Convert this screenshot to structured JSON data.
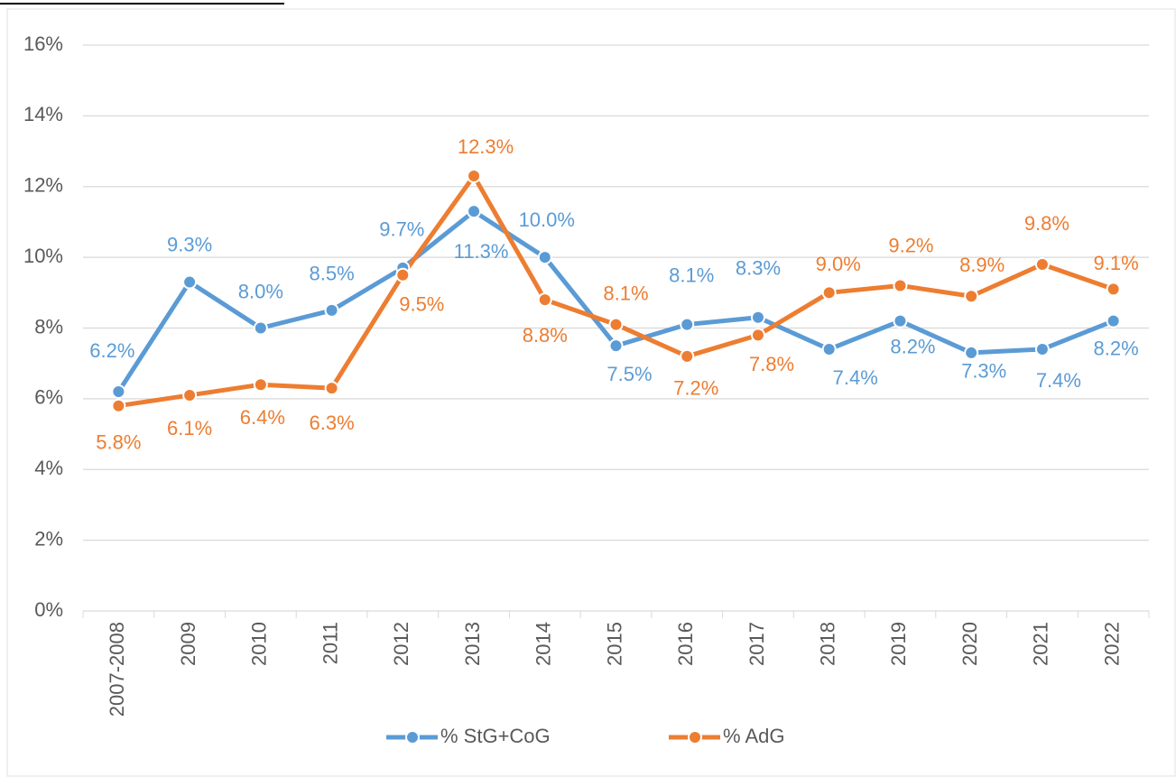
{
  "chart_data": {
    "type": "line",
    "categories": [
      "2007-2008",
      "2009",
      "2010",
      "2011",
      "2012",
      "2013",
      "2014",
      "2015",
      "2016",
      "2017",
      "2018",
      "2019",
      "2020",
      "2021",
      "2022"
    ],
    "series": [
      {
        "name": "% StG+CoG",
        "color": "#5b9bd5",
        "values": [
          6.2,
          9.3,
          8.0,
          8.5,
          9.7,
          11.3,
          10.0,
          7.5,
          8.1,
          8.3,
          7.4,
          8.2,
          7.3,
          7.4,
          8.2
        ],
        "value_labels": [
          "6.2%",
          "9.3%",
          "8.0%",
          "8.5%",
          "9.7%",
          "11.3%",
          "10.0%",
          "7.5%",
          "8.1%",
          "8.3%",
          "7.4%",
          "8.2%",
          "7.3%",
          "7.4%",
          "8.2%"
        ]
      },
      {
        "name": "% AdG",
        "color": "#ed7d31",
        "values": [
          5.8,
          6.1,
          6.4,
          6.3,
          9.5,
          12.3,
          8.8,
          8.1,
          7.2,
          7.8,
          9.0,
          9.2,
          8.9,
          9.8,
          9.1
        ],
        "value_labels": [
          "5.8%",
          "6.1%",
          "6.4%",
          "6.3%",
          "9.5%",
          "12.3%",
          "8.8%",
          "8.1%",
          "7.2%",
          "7.8%",
          "9.0%",
          "9.2%",
          "8.9%",
          "9.8%",
          "9.1%"
        ]
      }
    ],
    "ylim": [
      0,
      16
    ],
    "yticks": [
      {
        "value": 0,
        "label": "0%"
      },
      {
        "value": 2,
        "label": "2%"
      },
      {
        "value": 4,
        "label": "4%"
      },
      {
        "value": 6,
        "label": "6%"
      },
      {
        "value": 8,
        "label": "8%"
      },
      {
        "value": 10,
        "label": "10%"
      },
      {
        "value": 12,
        "label": "12%"
      },
      {
        "value": 14,
        "label": "14%"
      },
      {
        "value": 16,
        "label": "16%"
      }
    ],
    "grid": true,
    "legend": "bottom"
  }
}
